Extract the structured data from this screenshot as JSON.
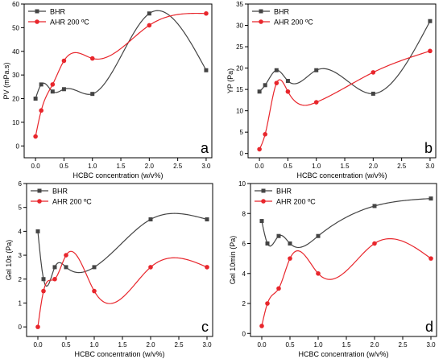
{
  "chart_data": [
    {
      "type": "scatter",
      "panel": "a",
      "xlabel": "HCBC concentration (w/v%)",
      "ylabel": "PV (mPa.s)",
      "xlim": [
        -0.2,
        3.1
      ],
      "ylim": [
        -5,
        60
      ],
      "xticks": [
        "0.0",
        "0.5",
        "1.0",
        "1.5",
        "2.0",
        "2.5",
        "3.0"
      ],
      "yticks": [
        "0",
        "10",
        "20",
        "30",
        "40",
        "50",
        "60"
      ],
      "legend_position": "top-left",
      "series": [
        {
          "name": "BHR",
          "color": "#444444",
          "marker": "square",
          "x": [
            0,
            0.1,
            0.3,
            0.5,
            1.0,
            2.0,
            3.0
          ],
          "y": [
            20,
            26,
            23,
            24,
            22,
            56,
            32
          ]
        },
        {
          "name": "AHR 200 ºC",
          "color": "#e8262c",
          "marker": "circle",
          "x": [
            0,
            0.1,
            0.3,
            0.5,
            1.0,
            2.0,
            3.0
          ],
          "y": [
            4,
            15,
            26,
            36,
            37,
            51,
            56
          ]
        }
      ]
    },
    {
      "type": "scatter",
      "panel": "b",
      "xlabel": "HCBC concentration (w/v%)",
      "ylabel": "YP (Pa)",
      "xlim": [
        -0.2,
        3.1
      ],
      "ylim": [
        -1,
        35
      ],
      "xticks": [
        "0.0",
        "0.5",
        "1.0",
        "1.5",
        "2.0",
        "2.5",
        "3.0"
      ],
      "yticks": [
        "0",
        "5",
        "10",
        "15",
        "20",
        "25",
        "30",
        "35"
      ],
      "legend_position": "top-left",
      "series": [
        {
          "name": "BHR",
          "color": "#444444",
          "marker": "square",
          "x": [
            0,
            0.1,
            0.3,
            0.5,
            1.0,
            2.0,
            3.0
          ],
          "y": [
            14.5,
            16,
            19.5,
            17,
            19.5,
            14,
            31
          ]
        },
        {
          "name": "AHR 200 ºC",
          "color": "#e8262c",
          "marker": "circle",
          "x": [
            0,
            0.1,
            0.3,
            0.5,
            1.0,
            2.0,
            3.0
          ],
          "y": [
            1,
            4.5,
            16.5,
            14.5,
            12,
            19,
            24
          ]
        }
      ]
    },
    {
      "type": "scatter",
      "panel": "c",
      "xlabel": "HCBC concentration (w/v%)",
      "ylabel": "Gel 10s (Pa)",
      "xlim": [
        -0.2,
        3.1
      ],
      "ylim": [
        -0.4,
        6
      ],
      "xticks": [
        "0.0",
        "0.5",
        "1.0",
        "1.5",
        "2.0",
        "2.5",
        "3.0"
      ],
      "yticks": [
        "0",
        "1",
        "2",
        "3",
        "4",
        "5",
        "6"
      ],
      "legend_position": "top-left",
      "series": [
        {
          "name": "BHR",
          "color": "#444444",
          "marker": "square",
          "x": [
            0,
            0.1,
            0.3,
            0.5,
            1.0,
            2.0,
            3.0
          ],
          "y": [
            4,
            2,
            2.5,
            2.5,
            2.5,
            4.5,
            4.5
          ]
        },
        {
          "name": "AHR 200 ºC",
          "color": "#e8262c",
          "marker": "circle",
          "x": [
            0,
            0.1,
            0.3,
            0.5,
            1.0,
            2.0,
            3.0
          ],
          "y": [
            0,
            1.5,
            2,
            3,
            1.5,
            2.5,
            2.5
          ]
        }
      ]
    },
    {
      "type": "scatter",
      "panel": "d",
      "xlabel": "HCBC concentration (w/v%)",
      "ylabel": "Gel 10min (Pa)",
      "xlim": [
        -0.2,
        3.1
      ],
      "ylim": [
        -0.2,
        10
      ],
      "xticks": [
        "0.0",
        "0.5",
        "1.0",
        "1.5",
        "2.0",
        "2.5",
        "3.0"
      ],
      "yticks": [
        "0",
        "2",
        "4",
        "6",
        "8",
        "10"
      ],
      "legend_position": "top-left",
      "series": [
        {
          "name": "BHR",
          "color": "#444444",
          "marker": "square",
          "x": [
            0,
            0.1,
            0.3,
            0.5,
            1.0,
            2.0,
            3.0
          ],
          "y": [
            7.5,
            6,
            6.5,
            6,
            6.5,
            8.5,
            9
          ]
        },
        {
          "name": "AHR 200 ºC",
          "color": "#e8262c",
          "marker": "circle",
          "x": [
            0,
            0.1,
            0.3,
            0.5,
            1.0,
            2.0,
            3.0
          ],
          "y": [
            0.5,
            2,
            3,
            5,
            4,
            6,
            5
          ]
        }
      ]
    }
  ]
}
